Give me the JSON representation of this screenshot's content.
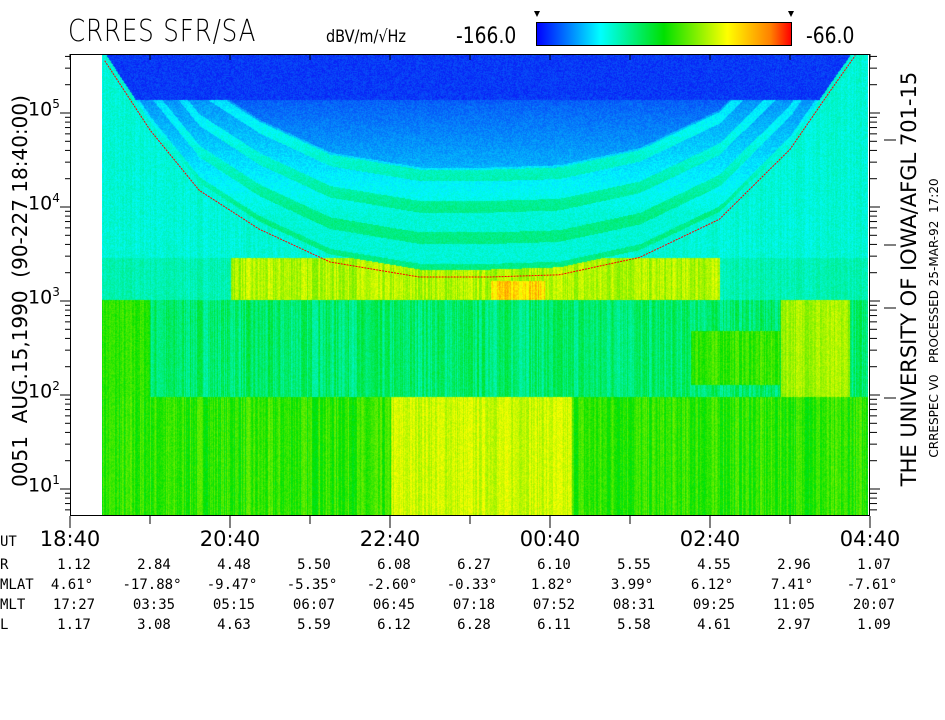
{
  "header": {
    "title": "CRRES SFR/SA",
    "units": "dBV/m/√Hz",
    "colorbar_min": "-166.0",
    "colorbar_max": "-66.0"
  },
  "left_label": "0051  AUG.15,1990  (90-227 18:40:00)",
  "right_label_main": "THE UNIVERSITY OF IOWA/AFGL 701-15",
  "right_label_small": "CRRESPEC V0   PROCESSED 25-MAR-92  17:20",
  "chart_data": {
    "type": "heatmap",
    "title": "CRRES SFR/SA",
    "colorbar": {
      "label": "dBV/m/√Hz",
      "range": [
        -166.0,
        -66.0
      ],
      "colors": [
        "#0000ff",
        "#00ffff",
        "#00e000",
        "#ffff00",
        "#ff0000"
      ]
    },
    "y_axis": {
      "scale": "log",
      "ticks": [
        "10^1",
        "10^2",
        "10^3",
        "10^4",
        "10^5"
      ],
      "tick_labels": [
        {
          "base": "10",
          "exp": "1"
        },
        {
          "base": "10",
          "exp": "2"
        },
        {
          "base": "10",
          "exp": "3"
        },
        {
          "base": "10",
          "exp": "4"
        },
        {
          "base": "10",
          "exp": "5"
        }
      ],
      "range": [
        5.4,
        430000
      ]
    },
    "x_axis": {
      "range": [
        "18:40",
        "04:40"
      ],
      "tick_labels": [
        "18:40",
        "20:40",
        "22:40",
        "00:40",
        "02:40",
        "04:40"
      ]
    },
    "gyrofrequency_curve": {
      "color": "#ff0000",
      "points": [
        [
          "19:06",
          360000
        ],
        [
          "19:40",
          66000
        ],
        [
          "20:17",
          15000
        ],
        [
          "21:02",
          5800
        ],
        [
          "21:55",
          2600
        ],
        [
          "23:02",
          1800
        ],
        [
          "23:55",
          1800
        ],
        [
          "00:47",
          1900
        ],
        [
          "01:47",
          2900
        ],
        [
          "02:47",
          7400
        ],
        [
          "03:40",
          41000
        ],
        [
          "04:10",
          170000
        ],
        [
          "04:29",
          410000
        ]
      ]
    }
  },
  "table": {
    "rows": [
      {
        "label": "R",
        "values": [
          "1.12",
          "2.84",
          "4.48",
          "5.50",
          "6.08",
          "6.27",
          "6.10",
          "5.55",
          "4.55",
          "2.96",
          "1.07"
        ]
      },
      {
        "label": "MLAT",
        "values": [
          "4.61°",
          "-17.88°",
          "-9.47°",
          "-5.35°",
          "-2.60°",
          "-0.33°",
          "1.82°",
          "3.99°",
          "6.12°",
          "7.41°",
          "-7.61°"
        ]
      },
      {
        "label": "MLT",
        "values": [
          "17:27",
          "03:35",
          "05:15",
          "06:07",
          "06:45",
          "07:18",
          "07:52",
          "08:31",
          "09:25",
          "11:05",
          "20:07"
        ]
      },
      {
        "label": "L",
        "values": [
          "1.17",
          "3.08",
          "4.63",
          "5.59",
          "6.12",
          "6.28",
          "6.11",
          "5.58",
          "4.61",
          "2.97",
          "1.09"
        ]
      }
    ],
    "ut_label": "UT"
  }
}
